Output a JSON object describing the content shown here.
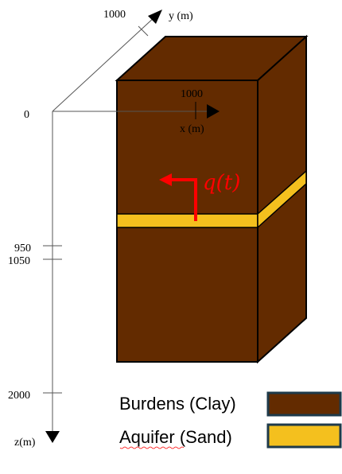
{
  "axes": {
    "y_label": "y (m)",
    "y_tick": "1000",
    "x_label": "x (m)",
    "x_tick": "1000",
    "z_label": "z(m)",
    "origin": "0",
    "z_ticks": [
      "950",
      "1050",
      "2000"
    ]
  },
  "flow_label": "q(t)",
  "legend": [
    {
      "label": "Burdens (Clay)",
      "color": "#632B00"
    },
    {
      "label": "Aquifer (Sand)",
      "color": "#F4C01E"
    }
  ],
  "colors": {
    "clay": "#632B00",
    "sand": "#F4C01E",
    "arrow": "#FF0000",
    "outline": "#000000"
  }
}
